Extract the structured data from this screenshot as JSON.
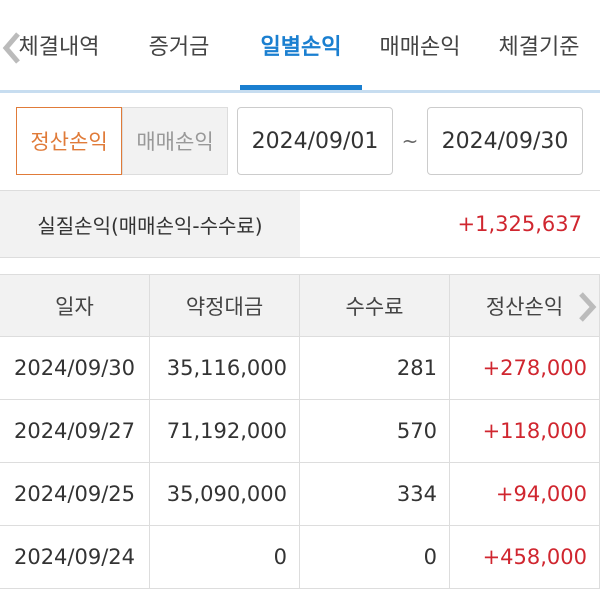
{
  "tabs": [
    "체결내역",
    "증거금",
    "일별손익",
    "매매손익",
    "체결기준"
  ],
  "filter": {
    "buttons": [
      "정산손익",
      "매매손익"
    ],
    "start_date": "2024/09/01",
    "separator": "~",
    "end_date": "2024/09/30"
  },
  "summary": {
    "label": "실질손익(매매손익-수수료)",
    "value": "+1,325,637"
  },
  "table": {
    "columns": [
      "일자",
      "약정대금",
      "수수료",
      "정산손익"
    ],
    "rows": [
      [
        "2024/09/30",
        "35,116,000",
        "281",
        "+278,000"
      ],
      [
        "2024/09/27",
        "71,192,000",
        "570",
        "+118,000"
      ],
      [
        "2024/09/25",
        "35,090,000",
        "334",
        "+94,000"
      ],
      [
        "2024/09/24",
        "0",
        "0",
        "+458,000"
      ]
    ]
  }
}
